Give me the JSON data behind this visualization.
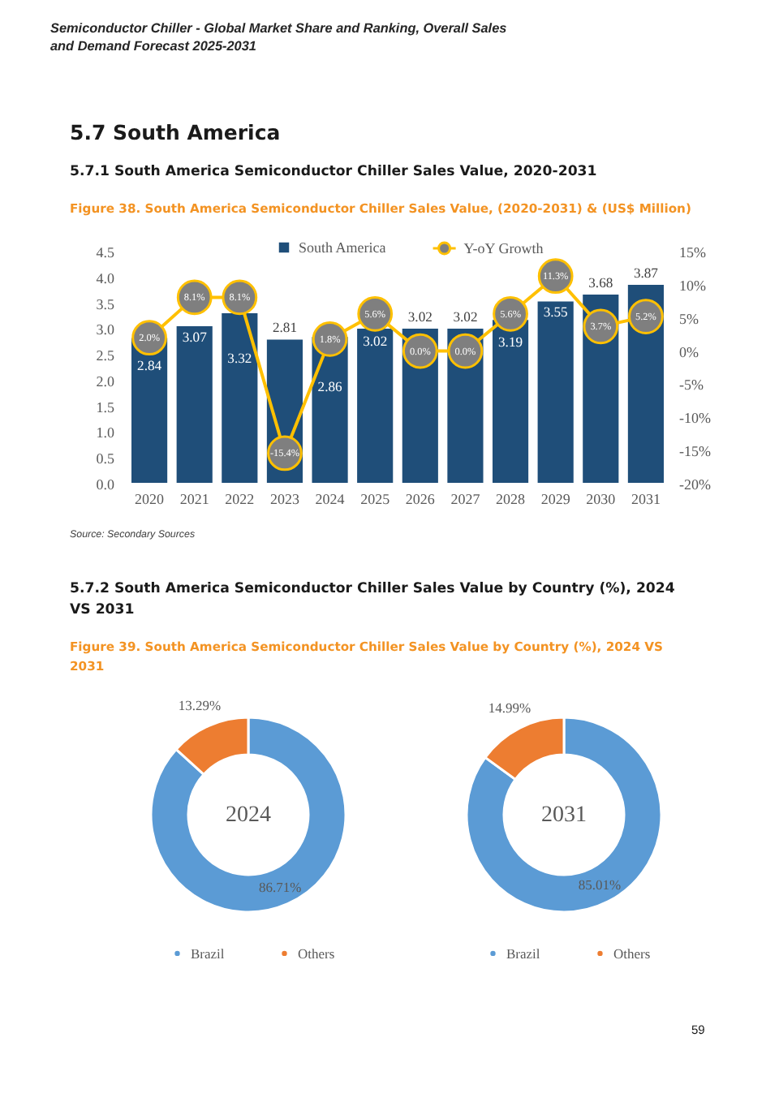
{
  "chart_data": [
    {
      "type": "bar",
      "title": "Figure 38. South America Semiconductor Chiller Sales Value, (2020-2031) & (US$ Million)",
      "annotations": [
        "Semiconductor Chiller - Global Market Share and Ranking, Overall Sales and Demand Forecast 2025-2031",
        "5.7 South America",
        "5.7.1 South America Semiconductor Chiller Sales Value, 2020-2031",
        "Source: Secondary Sources"
      ],
      "categories": [
        "2020",
        "2021",
        "2022",
        "2023",
        "2024",
        "2025",
        "2026",
        "2027",
        "2028",
        "2029",
        "2030",
        "2031"
      ],
      "series": [
        {
          "name": "South America",
          "type": "bar",
          "color": "#1F4E79",
          "values": [
            2.84,
            3.07,
            3.32,
            2.81,
            2.86,
            3.02,
            3.02,
            3.02,
            3.19,
            3.55,
            3.68,
            3.87
          ],
          "value_labels": [
            "2.84",
            "3.07",
            "3.32",
            "2.81",
            "2.86",
            "3.02",
            "3.02",
            "3.02",
            "3.19",
            "3.55",
            "3.68",
            "3.87"
          ]
        },
        {
          "name": "Y-oY Growth",
          "type": "line",
          "axis": "y2",
          "color": "#FFC000",
          "values": [
            2.0,
            8.1,
            8.1,
            -15.4,
            1.8,
            5.6,
            0.0,
            0.0,
            5.6,
            11.3,
            3.7,
            5.2
          ],
          "value_labels": [
            "2.0%",
            "8.1%",
            "8.1%",
            "-15.4%",
            "1.8%",
            "5.6%",
            "0.0%",
            "0.0%",
            "5.6%",
            "11.3%",
            "3.7%",
            "5.2%"
          ]
        }
      ],
      "ylim": [
        0,
        4.5
      ],
      "yticks": [
        {
          "value": 0,
          "label": "0.0"
        },
        {
          "value": 0.5,
          "label": "0.5"
        },
        {
          "value": 1,
          "label": "1.0"
        },
        {
          "value": 1.5,
          "label": "1.5"
        },
        {
          "value": 2,
          "label": "2.0"
        },
        {
          "value": 2.5,
          "label": "2.5"
        },
        {
          "value": 3,
          "label": "3.0"
        },
        {
          "value": 3.5,
          "label": "3.5"
        },
        {
          "value": 4,
          "label": "4.0"
        },
        {
          "value": 4.5,
          "label": "4.5"
        }
      ],
      "y2lim": [
        -20,
        15
      ],
      "y2ticks": [
        {
          "value": -20,
          "label": "-20%"
        },
        {
          "value": -15,
          "label": "-15%"
        },
        {
          "value": -10,
          "label": "-10%"
        },
        {
          "value": -5,
          "label": "-5%"
        },
        {
          "value": 0,
          "label": "0%"
        },
        {
          "value": 5,
          "label": "5%"
        },
        {
          "value": 10,
          "label": "10%"
        },
        {
          "value": 15,
          "label": "15%"
        }
      ],
      "legend": "top",
      "marker": "circle"
    },
    {
      "type": "donut",
      "title": "2024",
      "annotations": [
        "5.7.2 South America Semiconductor Chiller Sales Value by Country (%), 2024 VS 2031",
        "Figure 39. South America Semiconductor Chiller Sales Value by Country (%), 2024 VS 2031"
      ],
      "categories": [
        "Brazil",
        "Others"
      ],
      "values": [
        86.71,
        13.29
      ],
      "colors": [
        "#5B9BD5",
        "#ED7D31"
      ],
      "value_labels": [
        "86.71%",
        "13.29%"
      ],
      "legend": "bottom"
    },
    {
      "type": "donut",
      "title": "2031",
      "annotations": [
        "59"
      ],
      "categories": [
        "Brazil",
        "Others"
      ],
      "values": [
        85.01,
        14.99
      ],
      "colors": [
        "#5B9BD5",
        "#ED7D31"
      ],
      "value_labels": [
        "85.01%",
        "14.99%"
      ],
      "legend": "bottom"
    }
  ]
}
